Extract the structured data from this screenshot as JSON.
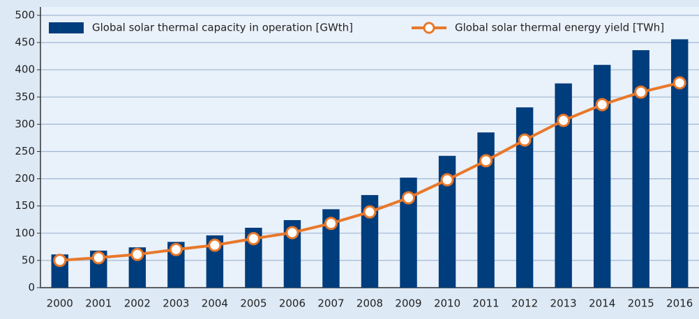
{
  "chart_data": {
    "type": "bar_line",
    "categories": [
      "2000",
      "2001",
      "2002",
      "2003",
      "2004",
      "2005",
      "2006",
      "2007",
      "2008",
      "2009",
      "2010",
      "2011",
      "2012",
      "2013",
      "2014",
      "2015",
      "2016"
    ],
    "series": [
      {
        "name": "Global solar thermal capacity in operation [GWth]",
        "type": "bar",
        "color": "#003d7c",
        "values": [
          61,
          68,
          74,
          84,
          96,
          110,
          124,
          144,
          170,
          202,
          242,
          285,
          331,
          375,
          409,
          436,
          456
        ]
      },
      {
        "name": "Global solar thermal energy yield [TWh]",
        "type": "line",
        "color": "#e8782a",
        "values": [
          50,
          55,
          61,
          70,
          78,
          90,
          101,
          118,
          139,
          165,
          198,
          233,
          271,
          307,
          336,
          359,
          376
        ]
      }
    ],
    "ylim": [
      0,
      500
    ],
    "yticks": [
      0,
      50,
      100,
      150,
      200,
      250,
      300,
      350,
      400,
      450,
      500
    ],
    "grid": true
  }
}
